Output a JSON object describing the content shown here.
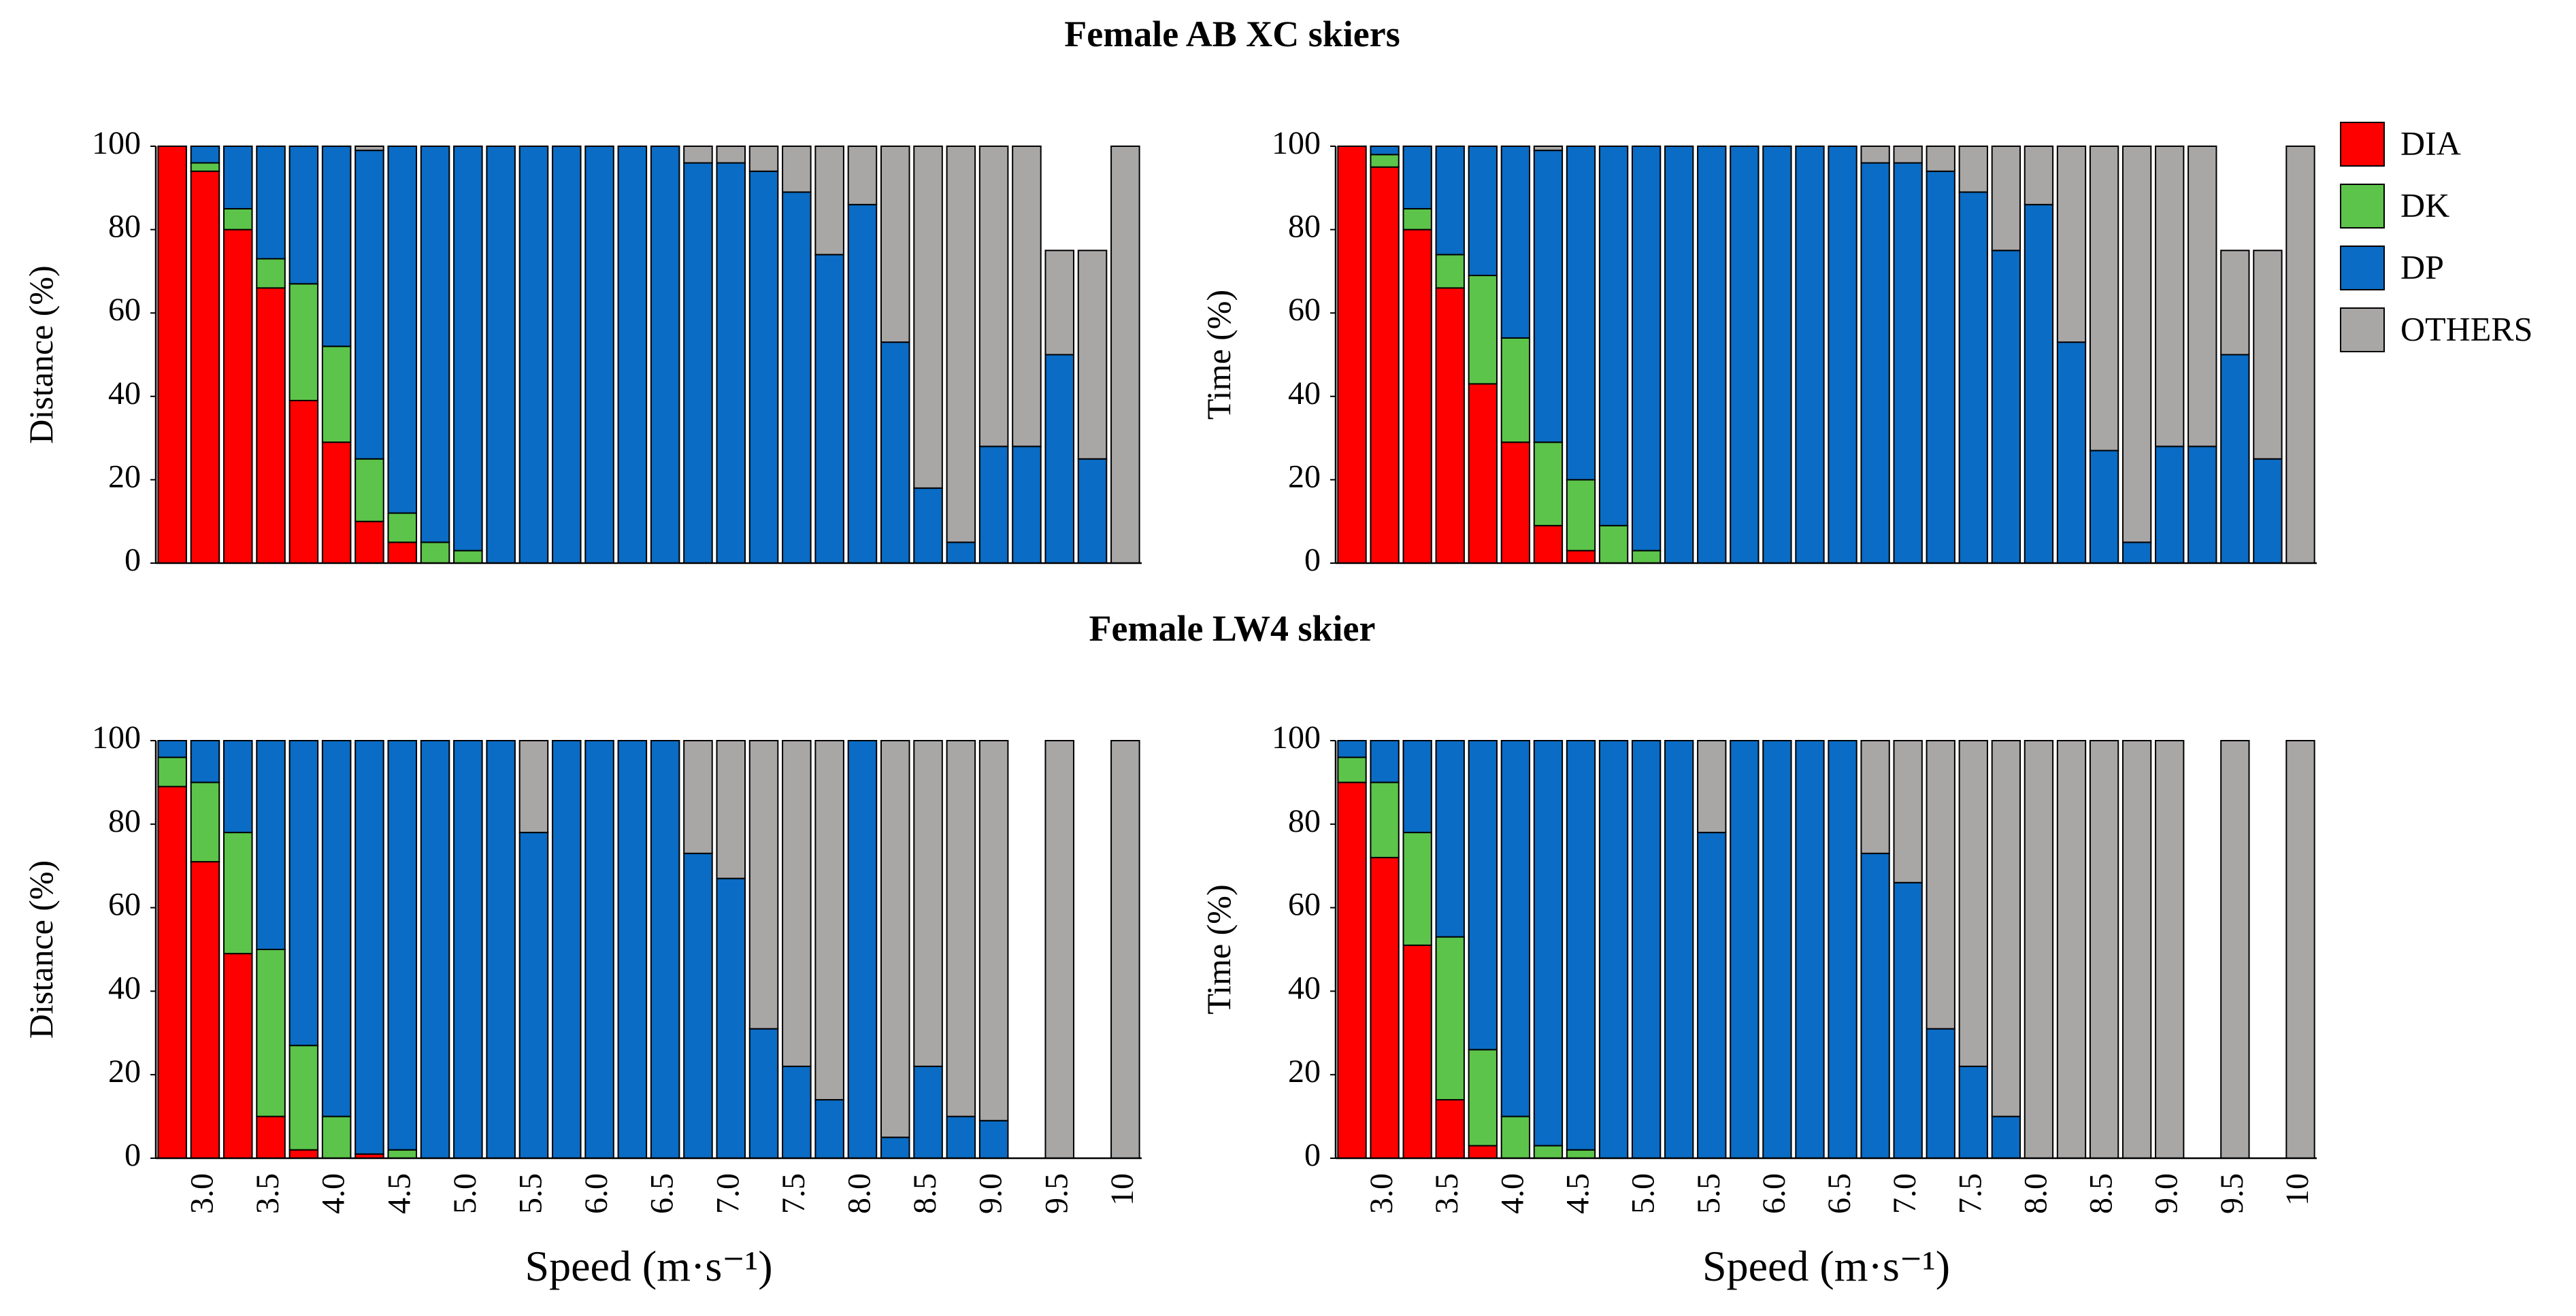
{
  "chart_data": [
    {
      "type": "stacked-bar",
      "title": "Female AB XC skiers",
      "ylabel": "Distance (%)",
      "categories": [
        null,
        null,
        null,
        null,
        null,
        null,
        null,
        null,
        null,
        null,
        null,
        null,
        null,
        null,
        null,
        null,
        null,
        null,
        null,
        null,
        null,
        null,
        null,
        null,
        null,
        null,
        null,
        null,
        null,
        null
      ],
      "ylim": [
        0,
        100
      ],
      "yticks": [
        0,
        20,
        40,
        60,
        80,
        100
      ],
      "series": [
        {
          "color": "#ff0000",
          "values": [
            100,
            94,
            80,
            66,
            39,
            29,
            10,
            5,
            0,
            0,
            0,
            0,
            0,
            0,
            0,
            0,
            0,
            0,
            0,
            0,
            0,
            0,
            0,
            0,
            0,
            0,
            0,
            0,
            0,
            0
          ]
        },
        {
          "color": "#5cc44a",
          "values": [
            0,
            2,
            5,
            7,
            28,
            23,
            15,
            7,
            5,
            3,
            0,
            0,
            0,
            0,
            0,
            0,
            0,
            0,
            0,
            0,
            0,
            0,
            0,
            0,
            0,
            0,
            0,
            0,
            0,
            0
          ]
        },
        {
          "color": "#0a6cc4",
          "values": [
            0,
            4,
            15,
            27,
            33,
            48,
            74,
            88,
            95,
            97,
            100,
            100,
            100,
            100,
            100,
            100,
            96,
            96,
            94,
            89,
            74,
            86,
            53,
            18,
            5,
            28,
            28,
            50,
            25,
            0
          ]
        },
        {
          "color": "#a9a6a6",
          "values": [
            0,
            0,
            0,
            0,
            0,
            0,
            1,
            0,
            0,
            0,
            0,
            0,
            0,
            0,
            0,
            0,
            4,
            4,
            6,
            11,
            26,
            14,
            47,
            82,
            95,
            72,
            72,
            25,
            50,
            100
          ]
        }
      ]
    },
    {
      "type": "stacked-bar",
      "ylabel": "Time (%)",
      "legend": "right",
      "categories": [
        null,
        null,
        null,
        null,
        null,
        null,
        null,
        null,
        null,
        null,
        null,
        null,
        null,
        null,
        null,
        null,
        null,
        null,
        null,
        null,
        null,
        null,
        null,
        null,
        null,
        null,
        null,
        null,
        null,
        null
      ],
      "ylim": [
        0,
        100
      ],
      "yticks": [
        0,
        20,
        40,
        60,
        80,
        100
      ],
      "series": [
        {
          "name": "DIA",
          "color": "#ff0000",
          "values": [
            100,
            95,
            80,
            66,
            43,
            29,
            9,
            3,
            0,
            0,
            0,
            0,
            0,
            0,
            0,
            0,
            0,
            0,
            0,
            0,
            0,
            0,
            0,
            0,
            0,
            0,
            0,
            0,
            0,
            0
          ]
        },
        {
          "name": "DK",
          "color": "#5cc44a",
          "values": [
            0,
            3,
            5,
            8,
            26,
            25,
            20,
            17,
            9,
            3,
            0,
            0,
            0,
            0,
            0,
            0,
            0,
            0,
            0,
            0,
            0,
            0,
            0,
            0,
            0,
            0,
            0,
            0,
            0,
            0
          ]
        },
        {
          "name": "DP",
          "color": "#0a6cc4",
          "values": [
            0,
            2,
            15,
            26,
            31,
            46,
            70,
            80,
            91,
            97,
            100,
            100,
            100,
            100,
            100,
            100,
            96,
            96,
            94,
            89,
            75,
            86,
            53,
            27,
            5,
            28,
            28,
            50,
            25,
            0
          ]
        },
        {
          "name": "OTHERS",
          "color": "#a9a6a6",
          "values": [
            0,
            0,
            0,
            0,
            0,
            0,
            1,
            0,
            0,
            0,
            0,
            0,
            0,
            0,
            0,
            0,
            4,
            4,
            6,
            11,
            25,
            14,
            47,
            73,
            95,
            72,
            72,
            25,
            50,
            100
          ]
        }
      ]
    },
    {
      "type": "stacked-bar",
      "title": "Female LW4 skier",
      "ylabel": "Distance (%)",
      "xlabel": "Speed (m·s⁻¹)",
      "categories": [
        null,
        "3.0",
        null,
        "3.5",
        null,
        "4.0",
        null,
        "4.5",
        null,
        "5.0",
        null,
        "5.5",
        null,
        "6.0",
        null,
        "6.5",
        null,
        "7.0",
        null,
        "7.5",
        null,
        "8.0",
        null,
        "8.5",
        null,
        "9.0",
        null,
        "9.5",
        null,
        "10"
      ],
      "ylim": [
        0,
        100
      ],
      "yticks": [
        0,
        20,
        40,
        60,
        80,
        100
      ],
      "series": [
        {
          "color": "#ff0000",
          "values": [
            89,
            71,
            49,
            10,
            2,
            0,
            1,
            0,
            0,
            0,
            0,
            0,
            0,
            0,
            0,
            0,
            0,
            0,
            0,
            0,
            0,
            0,
            0,
            0,
            0,
            0,
            0,
            0,
            0,
            0
          ]
        },
        {
          "color": "#5cc44a",
          "values": [
            7,
            19,
            29,
            40,
            25,
            10,
            0,
            2,
            0,
            0,
            0,
            0,
            0,
            0,
            0,
            0,
            0,
            0,
            0,
            0,
            0,
            0,
            0,
            0,
            0,
            0,
            0,
            0,
            0,
            0
          ]
        },
        {
          "color": "#0a6cc4",
          "values": [
            4,
            10,
            22,
            50,
            73,
            90,
            99,
            98,
            100,
            100,
            100,
            78,
            100,
            100,
            100,
            100,
            73,
            67,
            31,
            22,
            14,
            100,
            5,
            22,
            10,
            9,
            0,
            0,
            0,
            0
          ]
        },
        {
          "color": "#a9a6a6",
          "values": [
            0,
            0,
            0,
            0,
            0,
            0,
            0,
            0,
            0,
            0,
            0,
            22,
            0,
            0,
            0,
            0,
            27,
            33,
            69,
            78,
            86,
            0,
            95,
            78,
            90,
            91,
            0,
            100,
            0,
            100
          ]
        }
      ]
    },
    {
      "type": "stacked-bar",
      "ylabel": "Time (%)",
      "xlabel": "Speed (m·s⁻¹)",
      "categories": [
        null,
        "3.0",
        null,
        "3.5",
        null,
        "4.0",
        null,
        "4.5",
        null,
        "5.0",
        null,
        "5.5",
        null,
        "6.0",
        null,
        "6.5",
        null,
        "7.0",
        null,
        "7.5",
        null,
        "8.0",
        null,
        "8.5",
        null,
        "9.0",
        null,
        "9.5",
        null,
        "10"
      ],
      "ylim": [
        0,
        100
      ],
      "yticks": [
        0,
        20,
        40,
        60,
        80,
        100
      ],
      "series": [
        {
          "color": "#ff0000",
          "values": [
            90,
            72,
            51,
            14,
            3,
            0,
            0,
            0,
            0,
            0,
            0,
            0,
            0,
            0,
            0,
            0,
            0,
            0,
            0,
            0,
            0,
            0,
            0,
            0,
            0,
            0,
            0,
            0,
            0,
            0
          ]
        },
        {
          "color": "#5cc44a",
          "values": [
            6,
            18,
            27,
            39,
            23,
            10,
            3,
            2,
            0,
            0,
            0,
            0,
            0,
            0,
            0,
            0,
            0,
            0,
            0,
            0,
            0,
            0,
            0,
            0,
            0,
            0,
            0,
            0,
            0,
            0
          ]
        },
        {
          "color": "#0a6cc4",
          "values": [
            4,
            10,
            22,
            47,
            74,
            90,
            97,
            98,
            100,
            100,
            100,
            78,
            100,
            100,
            100,
            100,
            73,
            66,
            31,
            22,
            10,
            0,
            0,
            0,
            0,
            0,
            0,
            0,
            0,
            0
          ]
        },
        {
          "color": "#a9a6a6",
          "values": [
            0,
            0,
            0,
            0,
            0,
            0,
            0,
            0,
            0,
            0,
            0,
            22,
            0,
            0,
            0,
            0,
            27,
            34,
            69,
            78,
            90,
            100,
            100,
            100,
            100,
            100,
            0,
            100,
            0,
            100
          ]
        }
      ]
    }
  ]
}
